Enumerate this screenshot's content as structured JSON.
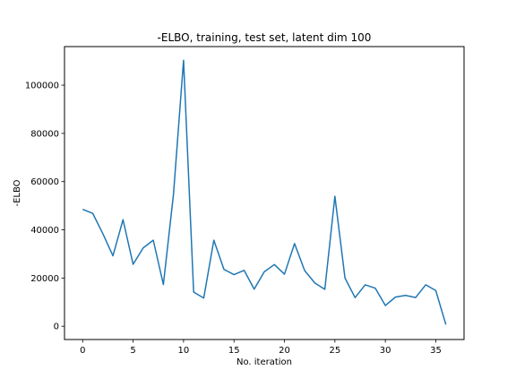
{
  "chart_data": {
    "type": "line",
    "title": "-ELBO, training, test set, latent dim 100",
    "xlabel": "No. iteration",
    "ylabel": "-ELBO",
    "xlim": [
      -1.8,
      37.8
    ],
    "ylim": [
      -5500,
      116000
    ],
    "xticks": [
      0,
      5,
      10,
      15,
      20,
      25,
      30,
      35
    ],
    "yticks": [
      0,
      20000,
      40000,
      60000,
      80000,
      100000
    ],
    "grid": false,
    "line_color": "#1f77b4",
    "series": [
      {
        "x": [
          0,
          1,
          2,
          3,
          4,
          5,
          6,
          7,
          8,
          9,
          10,
          11,
          12,
          13,
          14,
          15,
          16,
          17,
          18,
          19,
          20,
          21,
          22,
          23,
          24,
          25,
          26,
          27,
          28,
          29,
          30,
          31,
          32,
          33,
          34,
          35,
          36
        ],
        "values": [
          48500,
          46800,
          38400,
          29200,
          44200,
          25700,
          32500,
          35700,
          17300,
          54700,
          110300,
          14200,
          11700,
          35700,
          23600,
          21400,
          23200,
          15400,
          22600,
          25600,
          21600,
          34300,
          23100,
          18000,
          15300,
          53900,
          20000,
          11900,
          17200,
          15800,
          8600,
          12100,
          12800,
          11900,
          17200,
          14800,
          700
        ]
      }
    ]
  }
}
